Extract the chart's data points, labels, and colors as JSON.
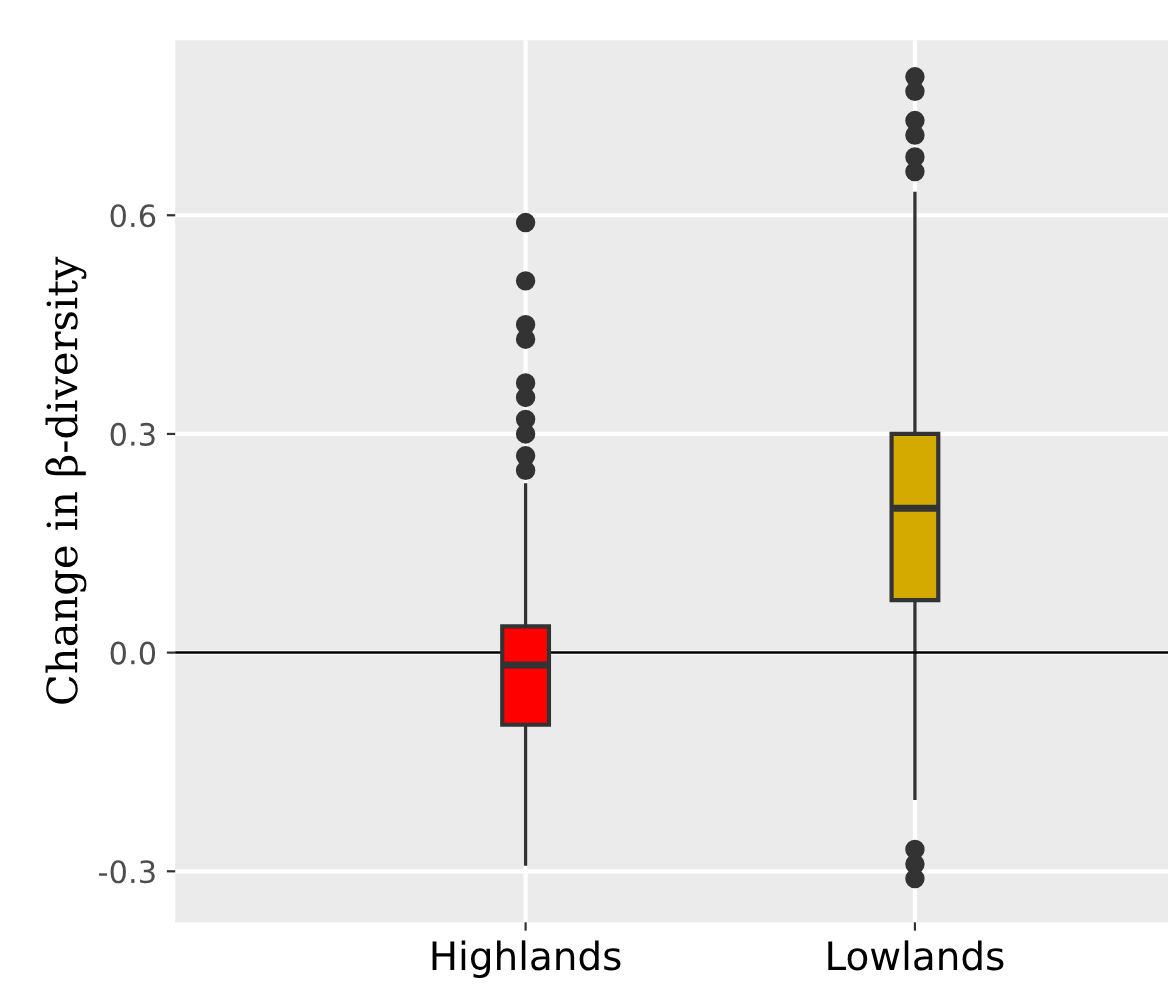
{
  "chart_data": {
    "type": "box",
    "ylabel": "Change in β-diversity",
    "categories": [
      "Highlands",
      "Lowlands"
    ],
    "boxes": [
      {
        "low": -0.29,
        "q1": -0.099,
        "median": -0.017,
        "q3": 0.036,
        "high": 0.23,
        "outliers": [
          0.25,
          0.27,
          0.3,
          0.32,
          0.35,
          0.37,
          0.43,
          0.45,
          0.51,
          0.59
        ]
      },
      {
        "low": -0.2,
        "q1": 0.072,
        "median": 0.198,
        "q3": 0.3,
        "high": 0.63,
        "outliers": [
          0.66,
          0.68,
          0.71,
          0.73,
          0.77,
          0.79,
          -0.27,
          -0.29,
          -0.31
        ]
      }
    ],
    "colors": [
      "#ff0000",
      "#d4aa00"
    ],
    "ylim": [
      -0.37,
      0.84
    ],
    "yticks": [
      {
        "value": -0.3,
        "label": "-0.3"
      },
      {
        "value": 0,
        "label": "0.0"
      },
      {
        "value": 0.3,
        "label": "0.3"
      },
      {
        "value": 0.6,
        "label": "0.6"
      }
    ],
    "grid": true,
    "ref_lines": [
      {
        "axis": "y",
        "value": 0,
        "color": "#000000"
      }
    ]
  }
}
